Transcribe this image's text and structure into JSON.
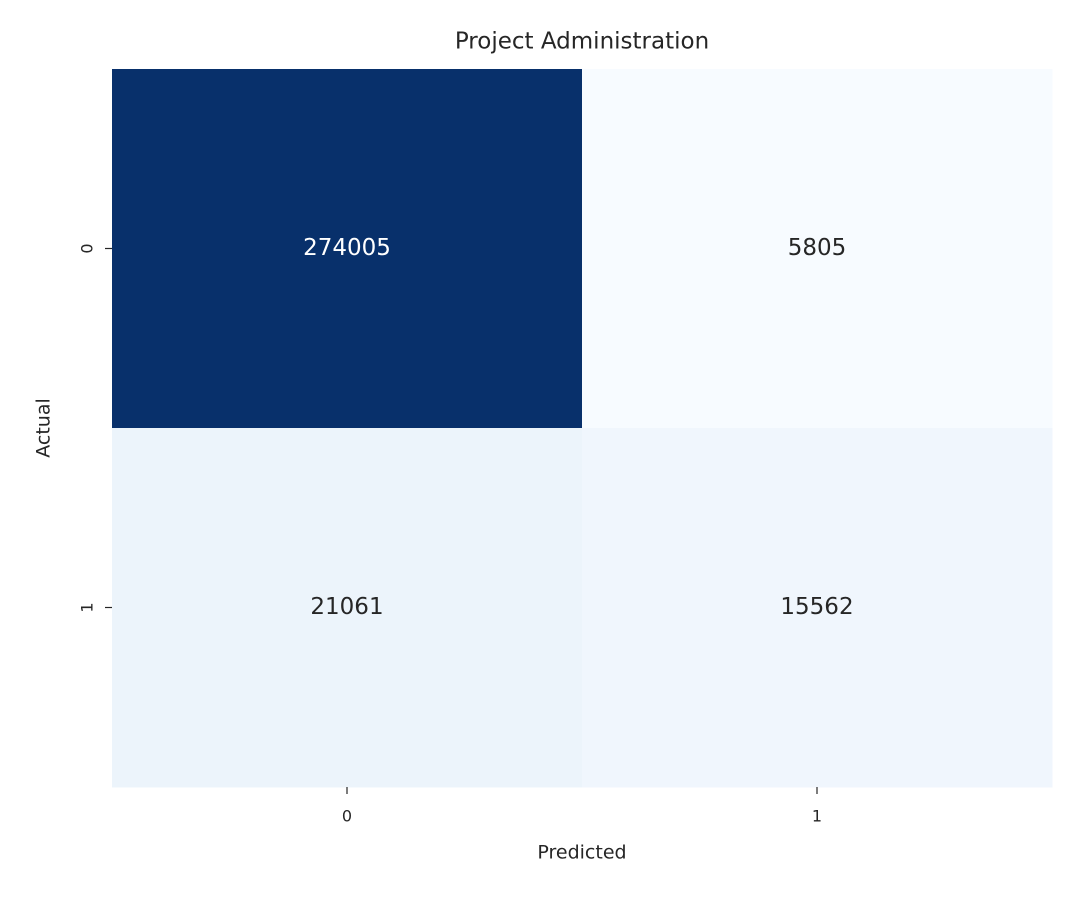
{
  "chart_data": {
    "type": "heatmap",
    "title": "Project Administration",
    "x_label": "Predicted",
    "y_label": "Actual",
    "x_categories": [
      "0",
      "1"
    ],
    "y_categories": [
      "0",
      "1"
    ],
    "values": [
      [
        274005,
        5805
      ],
      [
        21061,
        15562
      ]
    ],
    "colormap": "Blues",
    "colorbar": false
  }
}
